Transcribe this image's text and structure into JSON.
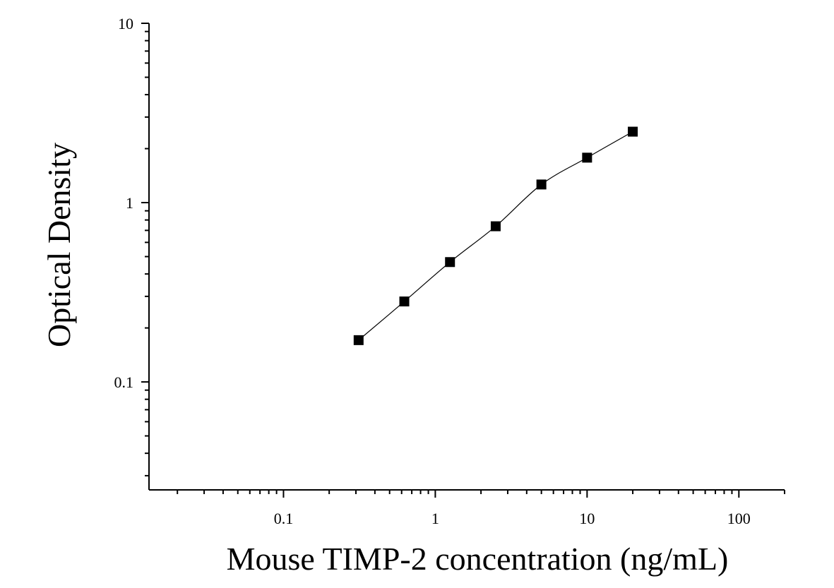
{
  "chart_data": {
    "type": "scatter",
    "title": "",
    "xlabel": "Mouse TIMP-2 concentration (ng/mL)",
    "ylabel": "Optical Density",
    "x_scale": "log",
    "y_scale": "log",
    "xlim": [
      0.013,
      200
    ],
    "ylim": [
      0.025,
      10
    ],
    "x_tick_labels": [
      "0.1",
      "1",
      "10",
      "100"
    ],
    "x_tick_values": [
      0.1,
      1,
      10,
      100
    ],
    "y_tick_labels": [
      "0.1",
      "1",
      "10"
    ],
    "y_tick_values": [
      0.1,
      1,
      10
    ],
    "grid": false,
    "legend": "none",
    "series": [
      {
        "marker": "square",
        "color": "#000000",
        "fit_line": true,
        "x": [
          0.3125,
          0.625,
          1.25,
          2.5,
          5,
          10,
          20
        ],
        "y": [
          0.171,
          0.281,
          0.466,
          0.738,
          1.262,
          1.781,
          2.487
        ]
      }
    ]
  }
}
